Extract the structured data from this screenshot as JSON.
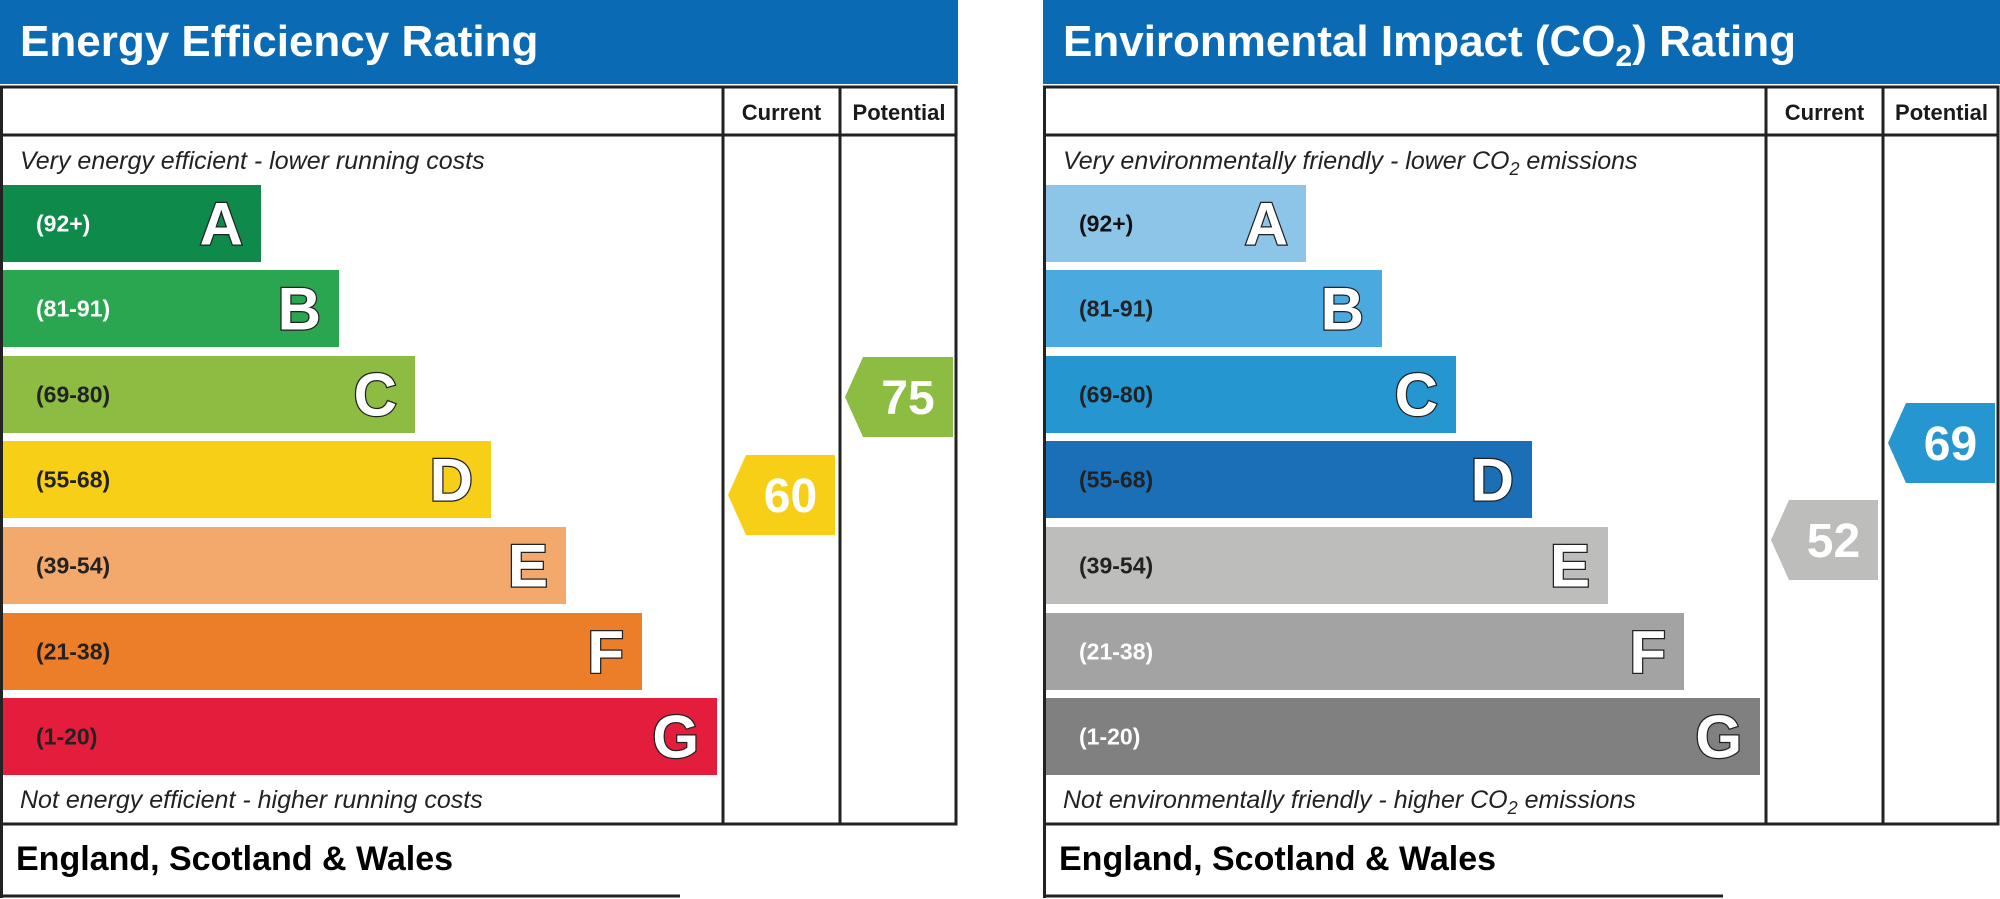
{
  "chart_data": [
    {
      "type": "bar",
      "title": "Energy Efficiency Rating",
      "columns": [
        "Current",
        "Potential"
      ],
      "top_note": "Very energy efficient - lower running costs",
      "bottom_note": "Not energy efficient - higher running costs",
      "region": "England, Scotland & Wales",
      "bands": [
        {
          "letter": "A",
          "range": "(92+)",
          "color": "#0e8a4a",
          "range_color": "#ffffff"
        },
        {
          "letter": "B",
          "range": "(81-91)",
          "color": "#2aa651",
          "range_color": "#ffffff"
        },
        {
          "letter": "C",
          "range": "(69-80)",
          "color": "#8cbc41",
          "range_color": "#222222"
        },
        {
          "letter": "D",
          "range": "(55-68)",
          "color": "#f7cf17",
          "range_color": "#222222"
        },
        {
          "letter": "E",
          "range": "(39-54)",
          "color": "#f2a96b",
          "range_color": "#222222"
        },
        {
          "letter": "F",
          "range": "(21-38)",
          "color": "#ec7d29",
          "range_color": "#222222"
        },
        {
          "letter": "G",
          "range": "(1-20)",
          "color": "#e31d3b",
          "range_color": "#222222"
        }
      ],
      "current": {
        "value": 60,
        "color": "#f7cf17"
      },
      "potential": {
        "value": 75,
        "color": "#8cbc41"
      }
    },
    {
      "type": "bar",
      "title_parts": [
        "Environmental Impact (CO",
        "2",
        ") Rating"
      ],
      "columns": [
        "Current",
        "Potential"
      ],
      "top_note_parts": [
        "Very environmentally friendly - lower CO",
        "2",
        " emissions"
      ],
      "bottom_note_parts": [
        "Not environmentally friendly - higher CO",
        "2",
        " emissions"
      ],
      "region": "England, Scotland & Wales",
      "bands": [
        {
          "letter": "A",
          "range": "(92+)",
          "color": "#8cc5e8",
          "range_color": "#111111"
        },
        {
          "letter": "B",
          "range": "(81-91)",
          "color": "#4aaadf",
          "range_color": "#222222"
        },
        {
          "letter": "C",
          "range": "(69-80)",
          "color": "#2596d0",
          "range_color": "#222222"
        },
        {
          "letter": "D",
          "range": "(55-68)",
          "color": "#1a6fb6",
          "range_color": "#222222"
        },
        {
          "letter": "E",
          "range": "(39-54)",
          "color": "#bdbdbb",
          "range_color": "#222222"
        },
        {
          "letter": "F",
          "range": "(21-38)",
          "color": "#a3a3a3",
          "range_color": "#ffffff"
        },
        {
          "letter": "G",
          "range": "(1-20)",
          "color": "#808080",
          "range_color": "#ffffff"
        }
      ],
      "current": {
        "value": 52,
        "color": "#bdbdbb"
      },
      "potential": {
        "value": 69,
        "color": "#2596d0"
      }
    }
  ],
  "colors": {
    "header": "#0a6ab4",
    "border": "#222222"
  }
}
